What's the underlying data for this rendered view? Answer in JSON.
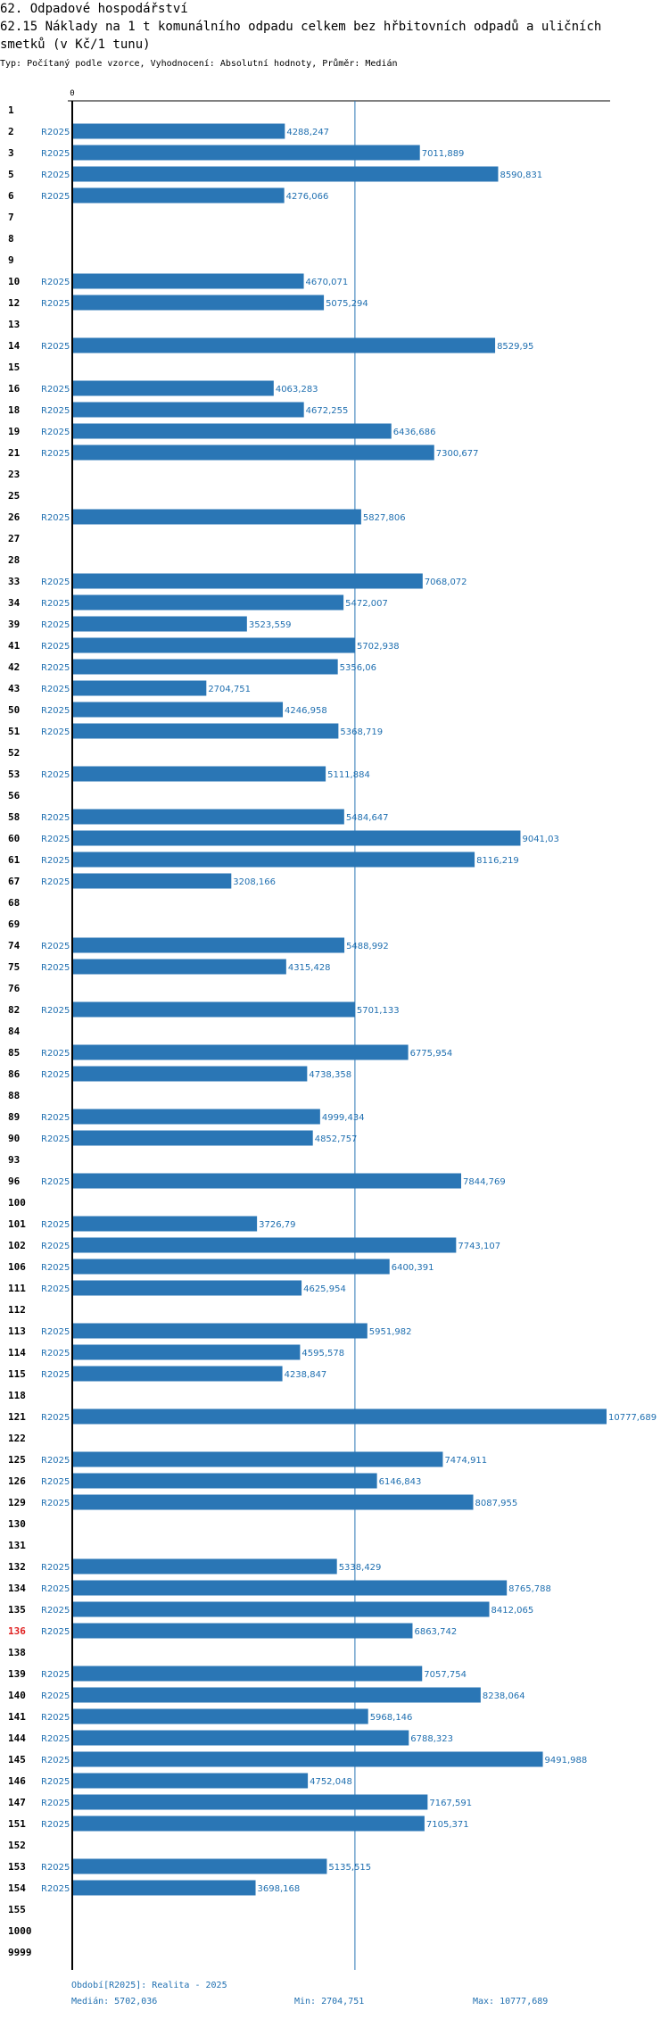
{
  "header": {
    "line1": "62. Odpadové hospodářství",
    "line2": "62.15 Náklady na 1 t komunálního odpadu celkem bez hřbitovních odpadů a uličních",
    "line3": "smetků (v Kč/1 tunu)",
    "subtitle": "Typ: Počítaný podle vzorce, Vyhodnocení: Absolutní hodnoty, Průměr: Medián"
  },
  "footer": {
    "period": "Období[R2025]: Realita - 2025",
    "median": "Medián: 5702,036",
    "min": "Min: 2704,751",
    "max": "Max: 10777,689"
  },
  "colors": {
    "bar": "#2a76b5",
    "label": "#1f6fb0",
    "highlight": "#e02020",
    "axis": "#000000"
  },
  "chart_data": {
    "type": "bar",
    "orientation": "horizontal",
    "axis_zero_label": "0",
    "series_label": "R2025",
    "median": 5702.036,
    "xlim": [
      0,
      11000
    ],
    "highlight_category": "136",
    "categories": [
      "1",
      "2",
      "3",
      "5",
      "6",
      "7",
      "8",
      "9",
      "10",
      "12",
      "13",
      "14",
      "15",
      "16",
      "18",
      "19",
      "21",
      "23",
      "25",
      "26",
      "27",
      "28",
      "33",
      "34",
      "39",
      "41",
      "42",
      "43",
      "50",
      "51",
      "52",
      "53",
      "56",
      "58",
      "60",
      "61",
      "67",
      "68",
      "69",
      "74",
      "75",
      "76",
      "82",
      "84",
      "85",
      "86",
      "88",
      "89",
      "90",
      "93",
      "96",
      "100",
      "101",
      "102",
      "106",
      "111",
      "112",
      "113",
      "114",
      "115",
      "118",
      "121",
      "122",
      "125",
      "126",
      "129",
      "130",
      "131",
      "132",
      "134",
      "135",
      "136",
      "138",
      "139",
      "140",
      "141",
      "144",
      "145",
      "146",
      "147",
      "151",
      "152",
      "153",
      "154",
      "155",
      "1000",
      "9999"
    ],
    "values": [
      null,
      4288.247,
      7011.889,
      8590.831,
      4276.066,
      null,
      null,
      null,
      4670.071,
      5075.294,
      null,
      8529.95,
      null,
      4063.283,
      4672.255,
      6436.686,
      7300.677,
      null,
      null,
      5827.806,
      null,
      null,
      7068.072,
      5472.007,
      3523.559,
      5702.938,
      5356.06,
      2704.751,
      4246.958,
      5368.719,
      null,
      5111.884,
      null,
      5484.647,
      9041.03,
      8116.219,
      3208.166,
      null,
      null,
      5488.992,
      4315.428,
      null,
      5701.133,
      null,
      6775.954,
      4738.358,
      null,
      4999.434,
      4852.757,
      null,
      7844.769,
      null,
      3726.79,
      7743.107,
      6400.391,
      4625.954,
      null,
      5951.982,
      4595.578,
      4238.847,
      null,
      10777.689,
      null,
      7474.911,
      6146.843,
      8087.955,
      null,
      null,
      5338.429,
      8765.788,
      8412.065,
      6863.742,
      null,
      7057.754,
      8238.064,
      5968.146,
      6788.323,
      9491.988,
      4752.048,
      7167.591,
      7105.371,
      null,
      5135.515,
      3698.168,
      null,
      null,
      null
    ],
    "value_labels": [
      "",
      "4288,247",
      "7011,889",
      "8590,831",
      "4276,066",
      "",
      "",
      "",
      "4670,071",
      "5075,294",
      "",
      "8529,95",
      "",
      "4063,283",
      "4672,255",
      "6436,686",
      "7300,677",
      "",
      "",
      "5827,806",
      "",
      "",
      "7068,072",
      "5472,007",
      "3523,559",
      "5702,938",
      "5356,06",
      "2704,751",
      "4246,958",
      "5368,719",
      "",
      "5111,884",
      "",
      "5484,647",
      "9041,03",
      "8116,219",
      "3208,166",
      "",
      "",
      "5488,992",
      "4315,428",
      "",
      "5701,133",
      "",
      "6775,954",
      "4738,358",
      "",
      "4999,434",
      "4852,757",
      "",
      "7844,769",
      "",
      "3726,79",
      "7743,107",
      "6400,391",
      "4625,954",
      "",
      "5951,982",
      "4595,578",
      "4238,847",
      "",
      "10777,689",
      "",
      "7474,911",
      "6146,843",
      "8087,955",
      "",
      "",
      "5338,429",
      "8765,788",
      "8412,065",
      "6863,742",
      "",
      "7057,754",
      "8238,064",
      "5968,146",
      "6788,323",
      "9491,988",
      "4752,048",
      "7167,591",
      "7105,371",
      "",
      "5135,515",
      "3698,168",
      "",
      "",
      ""
    ]
  }
}
